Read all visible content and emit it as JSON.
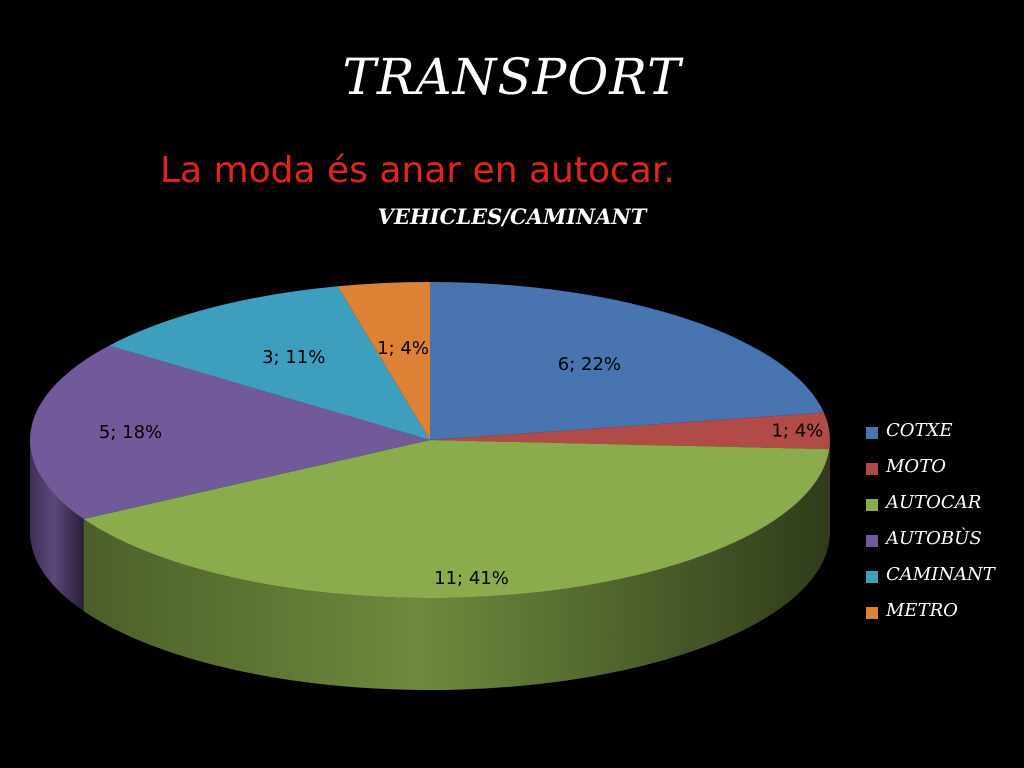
{
  "slide": {
    "title": "TRANSPORT",
    "subtitle": "La moda és anar en autocar."
  },
  "chart_data": {
    "type": "pie",
    "title": "VEHICLES/CAMINANT",
    "legend_position": "right",
    "three_d": true,
    "categories": [
      "COTXE",
      "MOTO",
      "AUTOCAR",
      "AUTOBÙS",
      "CAMINANT",
      "METRO"
    ],
    "values": [
      6,
      1,
      11,
      5,
      3,
      1
    ],
    "percentages": [
      22,
      4,
      41,
      18,
      11,
      4
    ],
    "data_labels": [
      "6; 22%",
      "1; 4%",
      "11; 41%",
      "5; 18%",
      "3; 11%",
      "1; 4%"
    ],
    "colors": [
      "#4874b0",
      "#b14b47",
      "#8aac4c",
      "#72599a",
      "#3d9ebd",
      "#dd8235"
    ]
  }
}
